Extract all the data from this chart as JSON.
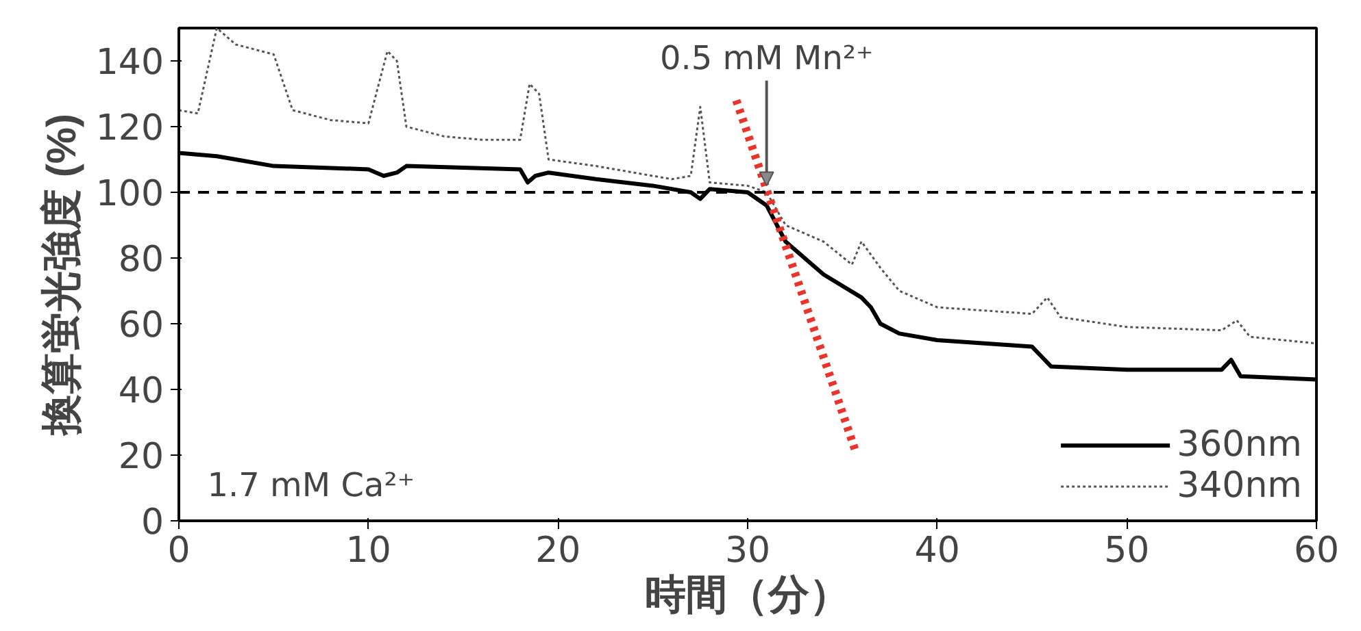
{
  "chart_data": {
    "type": "line",
    "xlabel": "時間（分）",
    "ylabel": "換算蛍光強度 (%)",
    "xlim": [
      0,
      60
    ],
    "ylim": [
      0,
      150
    ],
    "xticks": [
      0,
      10,
      20,
      30,
      40,
      50,
      60
    ],
    "yticks": [
      0,
      20,
      40,
      60,
      80,
      100,
      120,
      140
    ],
    "grid": false,
    "legend": "bottom right",
    "marker": "none",
    "series": [
      {
        "name": "360nm",
        "color": "#000000",
        "line_style": "solid",
        "x": [
          0,
          2,
          3,
          5,
          10,
          10.8,
          11.5,
          12,
          18,
          18.4,
          18.8,
          19.5,
          22,
          25,
          27,
          27.5,
          28,
          30,
          31,
          32,
          34,
          36,
          36.5,
          37,
          38,
          40,
          45,
          45.5,
          46,
          50,
          55,
          55.5,
          56,
          60
        ],
        "values": [
          112,
          111,
          110,
          108,
          107,
          105,
          106,
          108,
          107,
          103,
          105,
          106,
          104,
          102,
          100,
          98,
          101,
          100,
          96,
          85,
          75,
          68,
          65,
          60,
          57,
          55,
          53,
          50,
          47,
          46,
          46,
          49,
          44,
          43
        ]
      },
      {
        "name": "340nm",
        "color": "#555555",
        "line_style": "dotted",
        "x": [
          0,
          1,
          2,
          3,
          5,
          6,
          8,
          10,
          11,
          11.5,
          12,
          14,
          16,
          18,
          18.5,
          19,
          19.5,
          22,
          24,
          26,
          27,
          27.5,
          28,
          30,
          31,
          32,
          34,
          35.5,
          36,
          37,
          38,
          40,
          45,
          45.8,
          46.5,
          50,
          55,
          55.8,
          56.5,
          60
        ],
        "values": [
          125,
          124,
          150,
          145,
          142,
          125,
          122,
          121,
          143,
          140,
          120,
          117,
          116,
          116,
          133,
          130,
          110,
          108,
          106,
          104,
          105,
          126,
          103,
          102,
          100,
          90,
          85,
          78,
          85,
          77,
          70,
          65,
          63,
          68,
          62,
          59,
          58,
          61,
          56,
          54
        ]
      },
      {
        "color": "#e8342a",
        "line_style": "dotted",
        "x": [
          29.4,
          35.7
        ],
        "values": [
          128,
          21
        ]
      }
    ],
    "ref_lines": [
      {
        "axis": "y",
        "value": 100,
        "line_style": "dashed",
        "color": "#000000"
      }
    ],
    "annotations": [
      {
        "text": "0.5 mM Mn²⁺",
        "x": 31,
        "y": 102
      },
      "1.7 mM Ca²⁺"
    ]
  }
}
